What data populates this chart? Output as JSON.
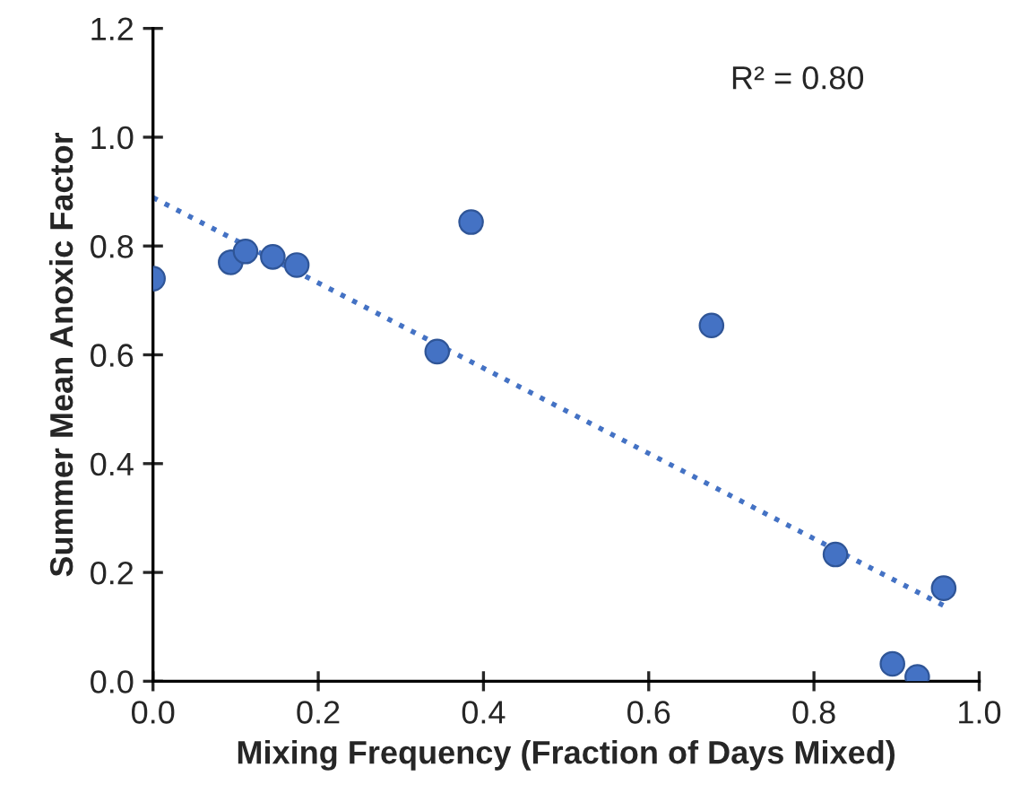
{
  "chart_data": {
    "type": "scatter",
    "xlabel": "Mixing Frequency (Fraction of Days Mixed)",
    "ylabel": "Summer Mean Anoxic Factor",
    "xlim": [
      0,
      1.0
    ],
    "xticks": [
      {
        "value": 0,
        "label": "0.0"
      },
      0.2,
      0.4,
      0.6,
      0.8,
      {
        "value": 1.0,
        "label": "1.0"
      }
    ],
    "ylim": [
      0,
      1.2
    ],
    "yticks": [
      {
        "value": 0,
        "label": "0.0"
      },
      0.2,
      0.4,
      0.6,
      0.8,
      {
        "value": 1.0,
        "label": "1.0"
      },
      1.2
    ],
    "grid": false,
    "legend": false,
    "marker": "circle",
    "series": [
      {
        "color": "#4472c4",
        "x": [
          0.0,
          0.094,
          0.112,
          0.145,
          0.174,
          0.344,
          0.385,
          0.676,
          0.826,
          0.895,
          0.925,
          0.957
        ],
        "values": [
          0.74,
          0.77,
          0.79,
          0.78,
          0.765,
          0.606,
          0.844,
          0.654,
          0.233,
          0.032,
          0.008,
          0.171
        ]
      },
      {
        "type": "line",
        "color": "#4472c4",
        "line_style": "dotted",
        "marker": "none",
        "x": [
          0.0,
          0.957
        ],
        "values": [
          0.889,
          0.139
        ]
      }
    ],
    "annotations": [
      "R² = 0.80"
    ]
  }
}
